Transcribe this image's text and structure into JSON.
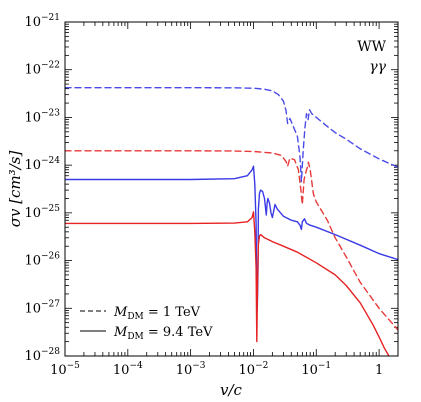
{
  "chart_data": {
    "type": "line",
    "xlabel": "v/c",
    "ylabel": "σv [cm³/s]",
    "x_scale": "log",
    "y_scale": "log",
    "xlim": [
      1e-05,
      2
    ],
    "ylim": [
      1e-28,
      1e-21
    ],
    "x_ticks": [
      {
        "value": 1e-05,
        "base": "10",
        "exp": "−5"
      },
      {
        "value": 0.0001,
        "base": "10",
        "exp": "−4"
      },
      {
        "value": 0.001,
        "base": "10",
        "exp": "−3"
      },
      {
        "value": 0.01,
        "base": "10",
        "exp": "−2"
      },
      {
        "value": 0.1,
        "base": "10",
        "exp": "−1"
      },
      {
        "value": 1,
        "base": "1",
        "exp": ""
      }
    ],
    "y_ticks": [
      {
        "value": 1e-28,
        "base": "10",
        "exp": "−28"
      },
      {
        "value": 1e-27,
        "base": "10",
        "exp": "−27"
      },
      {
        "value": 1e-26,
        "base": "10",
        "exp": "−26"
      },
      {
        "value": 1e-25,
        "base": "10",
        "exp": "−25"
      },
      {
        "value": 1e-24,
        "base": "10",
        "exp": "−24"
      },
      {
        "value": 1e-23,
        "base": "10",
        "exp": "−23"
      },
      {
        "value": 1e-22,
        "base": "10",
        "exp": "−22"
      },
      {
        "value": 1e-21,
        "base": "10",
        "exp": "−21"
      }
    ],
    "channel_labels": [
      {
        "text": "WW",
        "color": "#3a3ae6"
      },
      {
        "text": "γγ",
        "color": "#e62222"
      }
    ],
    "legend": {
      "placement": "bottom-left",
      "entries": [
        {
          "style": "dashed",
          "label": "M",
          "sub": "DM",
          "rest": " = 1 TeV"
        },
        {
          "style": "solid",
          "label": "M",
          "sub": "DM",
          "rest": " = 9.4 TeV"
        }
      ]
    },
    "series": [
      {
        "channel": "WW",
        "mass": "1 TeV",
        "style": "dashed",
        "color": "#4b4be8",
        "points": [
          [
            1e-05,
            4.2e-23
          ],
          [
            0.001,
            4.2e-23
          ],
          [
            0.005,
            4.18e-23
          ],
          [
            0.01,
            4.1e-23
          ],
          [
            0.015,
            3.9e-23
          ],
          [
            0.02,
            3.6e-23
          ],
          [
            0.025,
            3e-23
          ],
          [
            0.03,
            2.2e-23
          ],
          [
            0.033,
            1.4e-23
          ],
          [
            0.035,
            7.5e-24
          ],
          [
            0.038,
            9.5e-24
          ],
          [
            0.042,
            7e-24
          ],
          [
            0.05,
            4e-24
          ],
          [
            0.055,
            1.5e-24
          ],
          [
            0.058,
            4.5e-25
          ],
          [
            0.062,
            2e-24
          ],
          [
            0.066,
            6e-24
          ],
          [
            0.07,
            1.2e-23
          ],
          [
            0.074,
            9e-24
          ],
          [
            0.078,
            1.45e-23
          ],
          [
            0.085,
            1.2e-23
          ],
          [
            0.1,
            1e-23
          ],
          [
            0.15,
            6.5e-24
          ],
          [
            0.2,
            4.8e-24
          ],
          [
            0.3,
            3.5e-24
          ],
          [
            0.5,
            2.2e-24
          ],
          [
            1,
            1.35e-24
          ],
          [
            2,
            9e-25
          ]
        ]
      },
      {
        "channel": "γγ",
        "mass": "1 TeV",
        "style": "dashed",
        "color": "#e83a3a",
        "points": [
          [
            1e-05,
            2e-24
          ],
          [
            0.001,
            2e-24
          ],
          [
            0.005,
            1.98e-24
          ],
          [
            0.01,
            1.93e-24
          ],
          [
            0.02,
            1.8e-24
          ],
          [
            0.028,
            1.6e-24
          ],
          [
            0.033,
            1.2e-24
          ],
          [
            0.035,
            9.5e-25
          ],
          [
            0.038,
            1.4e-24
          ],
          [
            0.045,
            1.3e-24
          ],
          [
            0.052,
            8e-25
          ],
          [
            0.057,
            3e-25
          ],
          [
            0.06,
            1.5e-25
          ],
          [
            0.064,
            5e-25
          ],
          [
            0.068,
            7e-25
          ],
          [
            0.072,
            9e-25
          ],
          [
            0.075,
            1.15e-24
          ],
          [
            0.08,
            8e-25
          ],
          [
            0.09,
            2.5e-25
          ],
          [
            0.1,
            1.7e-25
          ],
          [
            0.15,
            7e-26
          ],
          [
            0.2,
            3e-26
          ],
          [
            0.3,
            1.2e-26
          ],
          [
            0.5,
            3.5e-27
          ],
          [
            1,
            1e-27
          ],
          [
            2,
            3.5e-28
          ]
        ]
      },
      {
        "channel": "WW",
        "mass": "9.4 TeV",
        "style": "solid",
        "color": "#3a3ae6",
        "points": [
          [
            1e-05,
            5e-25
          ],
          [
            0.001,
            5e-25
          ],
          [
            0.005,
            5.2e-25
          ],
          [
            0.008,
            6e-25
          ],
          [
            0.0095,
            8e-25
          ],
          [
            0.01,
            9.5e-25
          ],
          [
            0.0105,
            4e-25
          ],
          [
            0.011,
            6e-26
          ],
          [
            0.0112,
            7e-27
          ],
          [
            0.0115,
            1e-27
          ],
          [
            0.0118,
            6e-27
          ],
          [
            0.012,
            1.2e-25
          ],
          [
            0.0125,
            2.6e-25
          ],
          [
            0.013,
            3e-25
          ],
          [
            0.014,
            2.8e-25
          ],
          [
            0.015,
            2e-25
          ],
          [
            0.016,
            9e-26
          ],
          [
            0.0165,
            1.6e-25
          ],
          [
            0.017,
            2e-25
          ],
          [
            0.018,
            1.6e-25
          ],
          [
            0.019,
            1e-25
          ],
          [
            0.02,
            8e-26
          ],
          [
            0.022,
            1.5e-25
          ],
          [
            0.024,
            1.2e-25
          ],
          [
            0.027,
            1e-25
          ],
          [
            0.03,
            8.5e-26
          ],
          [
            0.04,
            7e-26
          ],
          [
            0.05,
            6.5e-26
          ],
          [
            0.055,
            5.5e-26
          ],
          [
            0.058,
            4.5e-26
          ],
          [
            0.06,
            6.5e-26
          ],
          [
            0.065,
            7.5e-26
          ],
          [
            0.07,
            6e-26
          ],
          [
            0.08,
            5.5e-26
          ],
          [
            0.1,
            5e-26
          ],
          [
            0.2,
            3.5e-26
          ],
          [
            0.5,
            2.1e-26
          ],
          [
            1,
            1.4e-26
          ],
          [
            2,
            1.05e-26
          ]
        ]
      },
      {
        "channel": "γγ",
        "mass": "9.4 TeV",
        "style": "solid",
        "color": "#e62222",
        "points": [
          [
            1e-05,
            6e-26
          ],
          [
            0.001,
            6e-26
          ],
          [
            0.005,
            6.1e-26
          ],
          [
            0.008,
            6.5e-26
          ],
          [
            0.0095,
            8e-26
          ],
          [
            0.01,
            1.05e-25
          ],
          [
            0.0105,
            4e-26
          ],
          [
            0.011,
            7e-27
          ],
          [
            0.0113,
            2e-28
          ],
          [
            0.0116,
            3e-27
          ],
          [
            0.012,
            2.2e-26
          ],
          [
            0.0125,
            3.3e-26
          ],
          [
            0.013,
            3.5e-26
          ],
          [
            0.015,
            3e-26
          ],
          [
            0.02,
            2.5e-26
          ],
          [
            0.03,
            2e-26
          ],
          [
            0.05,
            1.5e-26
          ],
          [
            0.1,
            9e-27
          ],
          [
            0.2,
            5e-27
          ],
          [
            0.3,
            3e-27
          ],
          [
            0.5,
            1.3e-27
          ],
          [
            0.8,
            4.5e-28
          ],
          [
            1,
            2.5e-28
          ],
          [
            1.2,
            1.5e-28
          ],
          [
            1.5,
            9e-29
          ]
        ]
      }
    ]
  }
}
